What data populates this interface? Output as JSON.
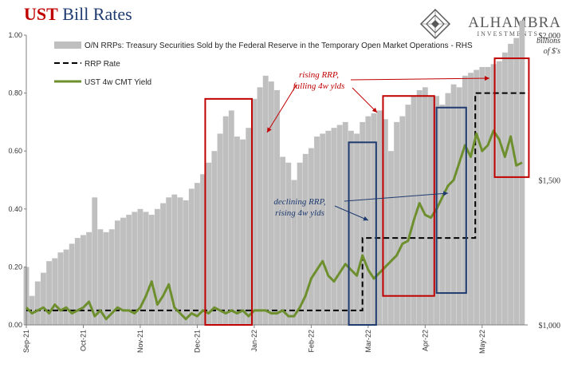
{
  "header": {
    "title_part1": "UST",
    "title_part2": " Bill Rates",
    "brand": "ALHAMBRA",
    "brand_sub": "INVESTMENTS"
  },
  "chart_data": {
    "type": "bar+line",
    "title": "UST Bill Rates",
    "x_labels": [
      "Sep-21",
      "Oct-21",
      "Nov-21",
      "Dec-21",
      "Jan-22",
      "Feb-22",
      "Mar-22",
      "Apr-22",
      "May-22"
    ],
    "x_range": [
      0,
      44
    ],
    "y_left": {
      "min": 0,
      "max": 1,
      "ticks": [
        "0.00",
        "0.20",
        "0.40",
        "0.60",
        "0.80",
        "1.00"
      ]
    },
    "y_right": {
      "min": 1000,
      "max": 2000,
      "ticks": [
        "$1,000",
        "$1,500",
        "$2,000"
      ],
      "unit_label": [
        "billions",
        "of $'s"
      ]
    },
    "legend": {
      "rrp_volume": "O/N RRPs: Treasury Securities Sold by the Federal Reserve in the Temporary Open Market Operations - RHS",
      "rrp_rate": "RRP Rate",
      "yield": "UST 4w CMT Yield"
    },
    "series": [
      {
        "name": "O/N RRPs (RHS, $ billions)",
        "kind": "bar",
        "color": "#bfbfbf",
        "x": [
          0,
          0.5,
          1,
          1.5,
          2,
          2.5,
          3,
          3.5,
          4,
          4.5,
          5,
          5.5,
          6,
          6.5,
          7,
          7.5,
          8,
          8.5,
          9,
          9.5,
          10,
          10.5,
          11,
          11.5,
          12,
          12.5,
          13,
          13.5,
          14,
          14.5,
          15,
          15.5,
          16,
          16.5,
          17,
          17.5,
          18,
          18.5,
          19,
          19.5,
          20,
          20.5,
          21,
          21.5,
          22,
          22.5,
          23,
          23.5,
          24,
          24.5,
          25,
          25.5,
          26,
          26.5,
          27,
          27.5,
          28,
          28.5,
          29,
          29.5,
          30,
          30.5,
          31,
          31.5,
          32,
          32.5,
          33,
          33.5,
          34,
          34.5,
          35,
          35.5,
          36,
          36.5,
          37,
          37.5,
          38,
          38.5,
          39,
          39.5,
          40,
          40.5,
          41,
          41.5,
          42,
          42.5,
          43,
          43.5
        ],
        "values": [
          1200,
          1100,
          1150,
          1180,
          1220,
          1230,
          1250,
          1260,
          1280,
          1300,
          1310,
          1320,
          1440,
          1330,
          1320,
          1330,
          1360,
          1370,
          1380,
          1390,
          1400,
          1390,
          1380,
          1400,
          1420,
          1440,
          1450,
          1440,
          1430,
          1470,
          1490,
          1520,
          1560,
          1600,
          1660,
          1720,
          1740,
          1650,
          1640,
          1680,
          1780,
          1820,
          1860,
          1840,
          1810,
          1580,
          1560,
          1500,
          1560,
          1590,
          1610,
          1650,
          1660,
          1670,
          1680,
          1690,
          1700,
          1670,
          1660,
          1700,
          1720,
          1730,
          1740,
          1710,
          1600,
          1700,
          1720,
          1760,
          1790,
          1810,
          1820,
          1790,
          1790,
          1760,
          1800,
          1830,
          1820,
          1860,
          1870,
          1880,
          1890,
          1890,
          1900,
          1910,
          1940,
          1970,
          1990,
          2050
        ]
      },
      {
        "name": "RRP Rate",
        "kind": "step",
        "color": "#000000",
        "x": [
          0,
          29.5,
          29.5,
          34.9,
          34.9,
          39.4,
          39.4,
          44
        ],
        "values": [
          0.05,
          0.05,
          0.3,
          0.3,
          0.3,
          0.3,
          0.8,
          0.8
        ]
      },
      {
        "name": "UST 4w CMT Yield",
        "kind": "line",
        "color": "#6e8f2e",
        "x": [
          0,
          0.5,
          1,
          1.5,
          2,
          2.5,
          3,
          3.5,
          4,
          4.5,
          5,
          5.5,
          6,
          6.5,
          7,
          7.5,
          8,
          8.5,
          9,
          9.5,
          10,
          10.5,
          11,
          11.5,
          12,
          12.5,
          13,
          13.5,
          14,
          14.5,
          15,
          15.5,
          16,
          16.5,
          17,
          17.5,
          18,
          18.5,
          19,
          19.5,
          20,
          20.5,
          21,
          21.5,
          22,
          22.5,
          23,
          23.5,
          24,
          24.5,
          25,
          25.5,
          26,
          26.5,
          27,
          27.5,
          28,
          28.5,
          29,
          29.5,
          30,
          30.5,
          31,
          31.5,
          32,
          32.5,
          33,
          33.5,
          34,
          34.5,
          35,
          35.5,
          36,
          36.5,
          37,
          37.5,
          38,
          38.5,
          39,
          39.5,
          40,
          40.5,
          41,
          41.5,
          42,
          42.5,
          43,
          43.5
        ],
        "values": [
          0.06,
          0.04,
          0.05,
          0.06,
          0.04,
          0.07,
          0.05,
          0.06,
          0.04,
          0.05,
          0.06,
          0.08,
          0.03,
          0.05,
          0.02,
          0.04,
          0.06,
          0.05,
          0.05,
          0.04,
          0.06,
          0.1,
          0.15,
          0.07,
          0.1,
          0.14,
          0.06,
          0.04,
          0.02,
          0.04,
          0.03,
          0.05,
          0.04,
          0.06,
          0.05,
          0.04,
          0.05,
          0.04,
          0.05,
          0.03,
          0.05,
          0.05,
          0.05,
          0.04,
          0.04,
          0.05,
          0.03,
          0.03,
          0.06,
          0.1,
          0.16,
          0.19,
          0.22,
          0.17,
          0.15,
          0.18,
          0.21,
          0.19,
          0.17,
          0.24,
          0.19,
          0.16,
          0.18,
          0.2,
          0.22,
          0.24,
          0.28,
          0.29,
          0.36,
          0.42,
          0.38,
          0.37,
          0.4,
          0.44,
          0.48,
          0.5,
          0.56,
          0.62,
          0.58,
          0.66,
          0.6,
          0.62,
          0.67,
          0.64,
          0.58,
          0.65,
          0.55,
          0.56
        ]
      }
    ],
    "annotations": {
      "rising": [
        "rising RRP,",
        "falling 4w ylds"
      ],
      "declining": [
        "declining RRP,",
        "rising 4w ylds"
      ]
    }
  }
}
